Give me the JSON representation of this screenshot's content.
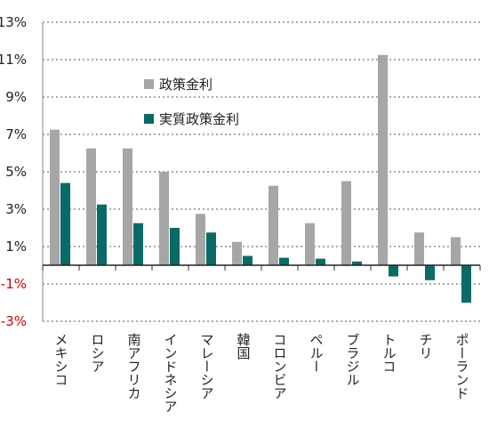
{
  "chart_data": {
    "type": "bar",
    "title": "",
    "xlabel": "",
    "ylabel": "",
    "categories": [
      "メキシコ",
      "ロシア",
      "南アフリカ",
      "インドネシア",
      "マレーシア",
      "韓国",
      "コロンビア",
      "ペルー",
      "ブラジル",
      "トルコ",
      "チリ",
      "ポーランド"
    ],
    "series": [
      {
        "name": "政策金利",
        "color": "#a6a6a6",
        "values": [
          7.25,
          6.25,
          6.25,
          5.0,
          2.75,
          1.25,
          4.25,
          2.25,
          4.5,
          11.25,
          1.75,
          1.5
        ]
      },
      {
        "name": "実質政策金利",
        "color": "#0a6b66",
        "values": [
          4.4,
          3.25,
          2.25,
          2.0,
          1.75,
          0.5,
          0.4,
          0.35,
          0.2,
          -0.6,
          -0.8,
          -2.0
        ]
      }
    ],
    "yticks": [
      {
        "value": 13,
        "label": "13%"
      },
      {
        "value": 11,
        "label": "11%"
      },
      {
        "value": 9,
        "label": "9%"
      },
      {
        "value": 7,
        "label": "7%"
      },
      {
        "value": 5,
        "label": "5%"
      },
      {
        "value": 3,
        "label": "3%"
      },
      {
        "value": 1,
        "label": "1%"
      },
      {
        "value": -1,
        "label": "-1%"
      },
      {
        "value": -3,
        "label": "-3%"
      }
    ],
    "ylim": [
      -3,
      13
    ],
    "grid": true,
    "legend_position": "upper-left",
    "negative_tick_color": "#cc0000"
  }
}
